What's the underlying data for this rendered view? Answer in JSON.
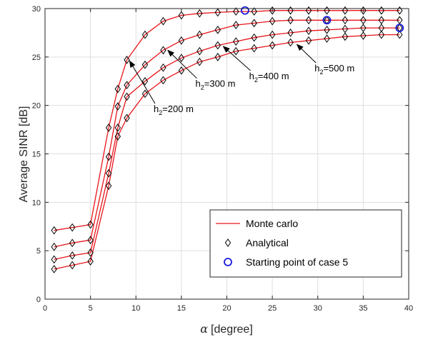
{
  "chart_data": {
    "type": "line",
    "xlabel": "[degree]",
    "xlabel_symbol": "α",
    "ylabel": "Average SINR [dB]",
    "xlim": [
      0,
      40
    ],
    "ylim": [
      0,
      30
    ],
    "xticks": [
      0,
      5,
      10,
      15,
      20,
      25,
      30,
      35,
      40
    ],
    "yticks": [
      0,
      5,
      10,
      15,
      20,
      25,
      30
    ],
    "grid": true,
    "legend_position": "bottom-right",
    "colors": {
      "monte_carlo": "#e8141a",
      "analytical": "#000000",
      "starting_point": "#1a1adc"
    },
    "x": [
      1,
      3,
      5,
      7,
      8,
      9,
      11,
      13,
      15,
      17,
      19,
      21,
      23,
      25,
      27,
      29,
      31,
      33,
      35,
      37,
      39
    ],
    "series": [
      {
        "label": "h2=200 m",
        "values": [
          7.1,
          7.4,
          7.7,
          17.7,
          21.7,
          24.7,
          27.3,
          28.7,
          29.3,
          29.5,
          29.6,
          29.7,
          29.7,
          29.8,
          29.8,
          29.8,
          29.8,
          29.8,
          29.8,
          29.8,
          29.8
        ]
      },
      {
        "label": "h2=300 m",
        "values": [
          5.4,
          5.8,
          6.1,
          14.7,
          19.9,
          22.1,
          24.2,
          25.7,
          26.7,
          27.3,
          27.8,
          28.3,
          28.5,
          28.7,
          28.8,
          28.8,
          28.8,
          28.8,
          28.8,
          28.8,
          28.8
        ]
      },
      {
        "label": "h2=400 m",
        "values": [
          4.1,
          4.5,
          4.8,
          13.0,
          17.7,
          20.9,
          22.5,
          23.9,
          24.9,
          25.6,
          26.2,
          26.6,
          27.0,
          27.3,
          27.5,
          27.7,
          27.8,
          27.9,
          28.0,
          28.0,
          28.0
        ]
      },
      {
        "label": "h2=500 m",
        "values": [
          3.1,
          3.5,
          3.9,
          11.7,
          16.8,
          18.7,
          21.2,
          22.6,
          23.6,
          24.5,
          25.0,
          25.6,
          25.9,
          26.2,
          26.5,
          26.7,
          26.9,
          27.1,
          27.2,
          27.3,
          27.3
        ]
      }
    ],
    "starting_points": [
      {
        "x": 22,
        "y": 29.8
      },
      {
        "x": 31,
        "y": 28.8
      },
      {
        "x": 39,
        "y": 28.0
      }
    ],
    "annotations": [
      {
        "base": "h",
        "sub": "2",
        "rest": "=200 m",
        "x_from": 12.1,
        "y_from": 20.2,
        "x_to": 9.3,
        "y_to": 24.6
      },
      {
        "base": "h",
        "sub": "2",
        "rest": "=300 m",
        "x_from": 16.7,
        "y_from": 22.8,
        "x_to": 13.5,
        "y_to": 25.7
      },
      {
        "base": "h",
        "sub": "2",
        "rest": "=400 m",
        "x_from": 22.6,
        "y_from": 23.6,
        "x_to": 19.6,
        "y_to": 26.1
      },
      {
        "base": "h",
        "sub": "2",
        "rest": "=500 m",
        "x_from": 29.8,
        "y_from": 24.4,
        "x_to": 27.7,
        "y_to": 26.3
      }
    ],
    "legend": [
      {
        "label": "Monte carlo",
        "kind": "line"
      },
      {
        "label": "Analytical",
        "kind": "diamond"
      },
      {
        "label": "Starting point of case 5",
        "kind": "circle"
      }
    ]
  }
}
